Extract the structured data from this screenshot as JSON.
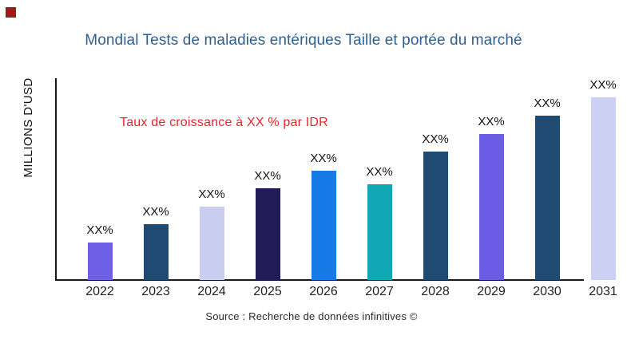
{
  "brand": {
    "logo_color": "#9e1b1b"
  },
  "chart_data": {
    "type": "bar",
    "title": "Mondial Tests de maladies entériques Taille et portée du marché",
    "title_color": "#2d608f",
    "ylabel": "MILLIONS D'USD",
    "xlabel": "",
    "annotation": "Taux de croissance à XX % par IDR",
    "annotation_color": "#e8252c",
    "source": "Source : Recherche de données infinitives ©",
    "legend": "none",
    "grid": "off",
    "y_axis_tick_labels": "none (values masked)",
    "categories": [
      "2022",
      "2023",
      "2024",
      "2025",
      "2026",
      "2027",
      "2028",
      "2029",
      "2030",
      "2031"
    ],
    "value_labels": [
      "XX%",
      "XX%",
      "XX%",
      "XX%",
      "XX%",
      "XX%",
      "XX%",
      "XX%",
      "XX%",
      "XX%"
    ],
    "bar_heights_rel": [
      47,
      70,
      92,
      115,
      137,
      120,
      161,
      183,
      206,
      229
    ],
    "bar_colors": [
      "#6e5fe7",
      "#1f4a72",
      "#c9cef0",
      "#231a59",
      "#1579e6",
      "#10a8b4",
      "#1f4a72",
      "#6a5ce4",
      "#1f4a72",
      "#ccd1f4"
    ]
  }
}
